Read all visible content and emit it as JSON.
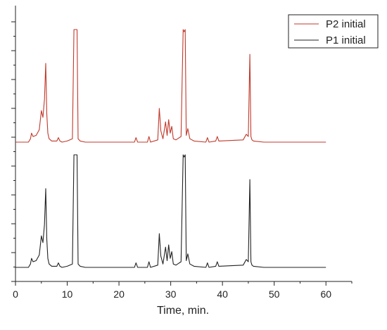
{
  "chart_data": {
    "type": "line",
    "title": "",
    "xlabel": "Time, min.",
    "ylabel": "",
    "xlim": [
      0,
      65
    ],
    "xticks": [
      0,
      10,
      20,
      30,
      40,
      50,
      60
    ],
    "ytick_labels_shown": false,
    "grid": false,
    "legend_position": "top-right",
    "series": [
      {
        "name": "P2 initial",
        "color": "#c0392b",
        "offset": "upper",
        "x": [
          0,
          2.5,
          2.9,
          3.1,
          3.4,
          4.0,
          4.6,
          5.0,
          5.3,
          5.6,
          5.85,
          6.05,
          6.25,
          6.5,
          7.0,
          8.0,
          8.3,
          8.6,
          9.0,
          10.0,
          11.0,
          11.3,
          11.5,
          11.7,
          11.9,
          12.1,
          12.5,
          13.5,
          16.0,
          22.0,
          23.0,
          23.3,
          23.6,
          25.5,
          25.8,
          26.1,
          27.5,
          27.8,
          28.1,
          28.5,
          29.0,
          29.3,
          29.6,
          29.9,
          30.2,
          30.5,
          31.0,
          32.0,
          32.4,
          32.6,
          32.8,
          33.0,
          33.3,
          33.7,
          34.5,
          36.8,
          37.1,
          37.4,
          38.7,
          39.0,
          39.3,
          44.0,
          44.6,
          45.0,
          45.3,
          45.5,
          45.7,
          46.0,
          48.0,
          60.0
        ],
        "y": [
          0,
          0,
          3,
          8,
          5,
          6,
          11,
          28,
          22,
          38,
          70,
          25,
          8,
          3,
          1,
          1,
          4,
          1,
          0,
          1,
          3,
          100,
          100,
          100,
          100,
          3,
          1,
          0,
          0,
          0,
          0,
          4,
          0,
          0,
          5,
          0,
          2,
          30,
          10,
          3,
          18,
          6,
          20,
          8,
          14,
          3,
          2,
          5,
          100,
          98,
          100,
          6,
          12,
          3,
          1,
          0,
          4,
          0,
          1,
          5,
          1,
          2,
          7,
          5,
          78,
          5,
          2,
          1,
          0,
          0
        ]
      },
      {
        "name": "P1 initial",
        "color": "#222222",
        "offset": "lower",
        "x": [
          0,
          2.5,
          2.9,
          3.1,
          3.4,
          4.0,
          4.6,
          5.0,
          5.3,
          5.6,
          5.85,
          6.05,
          6.25,
          6.5,
          7.0,
          8.0,
          8.3,
          8.6,
          9.0,
          10.0,
          11.0,
          11.3,
          11.5,
          11.7,
          11.9,
          12.1,
          12.5,
          13.5,
          16.0,
          22.0,
          23.0,
          23.3,
          23.6,
          25.5,
          25.8,
          26.1,
          27.5,
          27.8,
          28.1,
          28.5,
          29.0,
          29.3,
          29.6,
          29.9,
          30.2,
          30.5,
          31.0,
          32.0,
          32.4,
          32.6,
          32.8,
          33.0,
          33.3,
          33.7,
          34.5,
          36.8,
          37.1,
          37.4,
          38.7,
          39.0,
          39.3,
          44.0,
          44.6,
          45.0,
          45.3,
          45.5,
          45.7,
          46.0,
          48.0,
          60.0
        ],
        "y": [
          0,
          0,
          3,
          8,
          5,
          6,
          11,
          28,
          22,
          38,
          70,
          25,
          8,
          3,
          1,
          1,
          4,
          1,
          0,
          1,
          3,
          100,
          100,
          100,
          100,
          3,
          1,
          0,
          0,
          0,
          0,
          4,
          0,
          0,
          5,
          0,
          2,
          30,
          10,
          3,
          18,
          6,
          20,
          8,
          14,
          3,
          2,
          5,
          100,
          98,
          100,
          6,
          12,
          3,
          1,
          0,
          4,
          0,
          1,
          5,
          1,
          2,
          7,
          5,
          78,
          5,
          2,
          1,
          0,
          0
        ]
      }
    ]
  }
}
